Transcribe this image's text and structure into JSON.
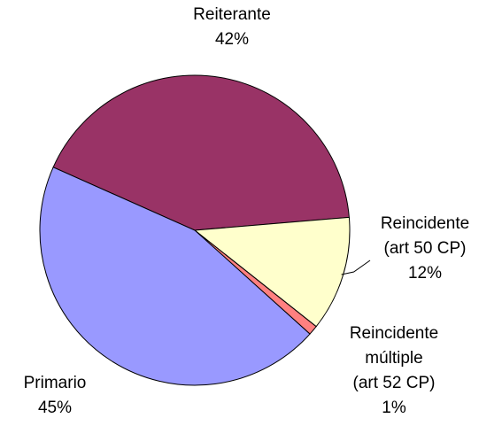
{
  "chart_data": {
    "type": "pie",
    "categories": [
      "Reiterante",
      "Reincidente\n(art 50 CP)",
      "Reincidente\nmúltiple\n(art 52 CP)",
      "Primario"
    ],
    "values": [
      42,
      12,
      1,
      45
    ],
    "value_labels": [
      "42%",
      "12%",
      "1%",
      "45%"
    ],
    "colors": [
      "#993366",
      "#FFFFCC",
      "#FF8080",
      "#9999FF"
    ]
  }
}
